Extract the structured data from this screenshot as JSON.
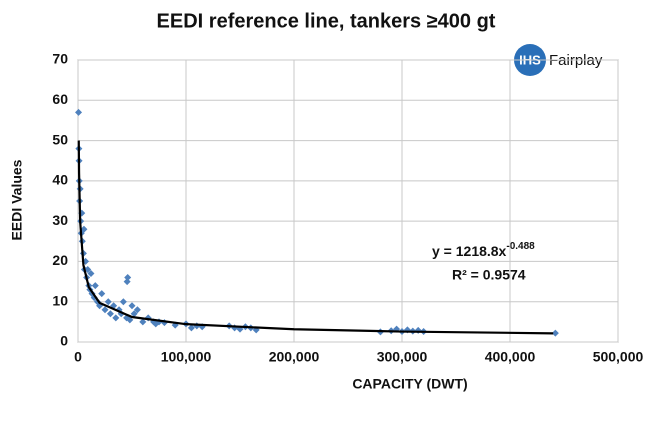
{
  "chart_data": {
    "type": "scatter",
    "title": "EEDI reference line, tankers ≥400 gt",
    "x_label": "CAPACITY (DWT)",
    "y_label": "EEDI Values",
    "x": [
      500,
      800,
      1000,
      1200,
      1500,
      2000,
      2500,
      3000,
      3500,
      4000,
      5000,
      5500,
      6000,
      7000,
      8000,
      9000,
      10000,
      11000,
      12000,
      13000,
      15000,
      16000,
      18000,
      20000,
      22000,
      25000,
      28000,
      30000,
      33000,
      35000,
      38000,
      40000,
      42000,
      45000,
      45500,
      46000,
      48000,
      50000,
      52000,
      55000,
      60000,
      65000,
      70000,
      72000,
      75000,
      80000,
      90000,
      100000,
      105000,
      110000,
      115000,
      140000,
      145000,
      150000,
      155000,
      160000,
      165000,
      280000,
      290000,
      295000,
      300000,
      305000,
      310000,
      315000,
      320000,
      442000
    ],
    "y": [
      57,
      48,
      45,
      40,
      35,
      38,
      30,
      27,
      32,
      25,
      22,
      28,
      18,
      20,
      16,
      18,
      14,
      13,
      17,
      12,
      11,
      14,
      10,
      9,
      12,
      8,
      10,
      7,
      9,
      6,
      8,
      7,
      10,
      6,
      15,
      16,
      5.5,
      9,
      7,
      8,
      5,
      6,
      5,
      4.5,
      5,
      4.8,
      4.2,
      4.5,
      3.5,
      4,
      3.8,
      4,
      3.5,
      3.2,
      3.8,
      3.5,
      3,
      2.5,
      2.8,
      3.2,
      2.6,
      3,
      2.7,
      2.9,
      2.6,
      2.2
    ],
    "color": "#4f81bd",
    "trendline": {
      "x": [
        700,
        1000,
        2000,
        5000,
        10000,
        20000,
        50000,
        100000,
        200000,
        300000,
        440000
      ],
      "y": [
        50,
        41.9,
        29.9,
        19.1,
        13.6,
        9.7,
        6.2,
        4.43,
        3.16,
        2.59,
        2.15
      ],
      "color": "#000000"
    },
    "equation": "y = 1218.8x",
    "equation_exponent": "-0.488",
    "r_squared": "R² = 0.9574",
    "logo": {
      "mark": "IHS",
      "text": "Fairplay"
    },
    "xlim": [
      0,
      500000
    ],
    "ylim": [
      0,
      70
    ],
    "xticks": [
      0,
      {
        "value": 100000,
        "label": "100,000"
      },
      {
        "value": 200000,
        "label": "200,000"
      },
      {
        "value": 300000,
        "label": "300,000"
      },
      {
        "value": 400000,
        "label": "400,000"
      },
      {
        "value": 500000,
        "label": "500,000"
      }
    ],
    "yticks": [
      0,
      10,
      20,
      30,
      40,
      50,
      60,
      70
    ],
    "grid": true
  }
}
